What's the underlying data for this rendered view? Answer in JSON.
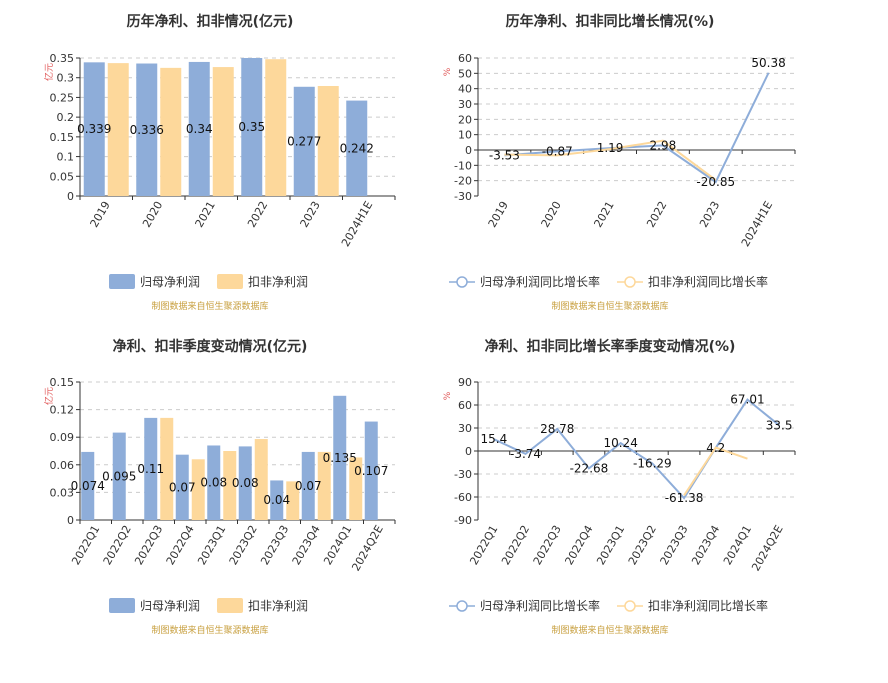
{
  "source_note": "制图数据来自恒生聚源数据库",
  "colors": {
    "series_a": "#8eadd9",
    "series_b": "#fdd89b",
    "unit_text": "#e05555",
    "source_text": "#c8a040",
    "axis": "#333333",
    "grid": "#cccccc"
  },
  "chart_data": [
    {
      "type": "bar",
      "title": "历年净利、扣非情况(亿元)",
      "ylabel": "亿元",
      "categories": [
        "2019",
        "2020",
        "2021",
        "2022",
        "2023",
        "2024H1E"
      ],
      "series": [
        {
          "name": "归母净利润",
          "values": [
            0.339,
            0.336,
            0.34,
            0.35,
            0.277,
            0.242
          ]
        },
        {
          "name": "扣非净利润",
          "values": [
            0.337,
            0.325,
            0.327,
            0.347,
            0.279,
            null
          ]
        }
      ],
      "data_labels": [
        "0.339",
        "0.336",
        "0.34",
        "0.35",
        "0.277",
        "0.242"
      ],
      "yticks": [
        "0",
        "0.05",
        "0.1",
        "0.15",
        "0.2",
        "0.25",
        "0.3",
        "0.35"
      ],
      "ylim": [
        0,
        0.35
      ],
      "grid": true,
      "legend": "bottom"
    },
    {
      "type": "line",
      "title": "历年净利、扣非同比增长情况(%)",
      "ylabel": "%",
      "categories": [
        "2019",
        "2020",
        "2021",
        "2022",
        "2023",
        "2024H1E"
      ],
      "series": [
        {
          "name": "归母净利润同比增长率",
          "values": [
            -3.53,
            -0.87,
            1.19,
            2.98,
            -20.85,
            50.38
          ]
        },
        {
          "name": "扣非净利润同比增长率",
          "values": [
            -3.0,
            -3.5,
            0.6,
            6.1,
            -19.6,
            null
          ]
        }
      ],
      "data_labels": [
        "-3.53",
        "-0.87",
        "1.19",
        "2.98",
        "-20.85",
        "50.38"
      ],
      "yticks": [
        "-30",
        "-20",
        "-10",
        "0",
        "10",
        "20",
        "30",
        "40",
        "50",
        "60"
      ],
      "ylim": [
        -30,
        60
      ],
      "grid": true,
      "legend": "bottom"
    },
    {
      "type": "bar",
      "title": "净利、扣非季度变动情况(亿元)",
      "ylabel": "亿元",
      "categories": [
        "2022Q1",
        "2022Q2",
        "2022Q3",
        "2022Q4",
        "2023Q1",
        "2023Q2",
        "2023Q3",
        "2023Q4",
        "2024Q1",
        "2024Q2E"
      ],
      "series": [
        {
          "name": "归母净利润",
          "values": [
            0.074,
            0.095,
            0.111,
            0.071,
            0.081,
            0.08,
            0.043,
            0.074,
            0.135,
            0.107
          ]
        },
        {
          "name": "扣非净利润",
          "values": [
            null,
            null,
            0.111,
            0.066,
            0.075,
            0.088,
            0.042,
            0.074,
            0.068,
            null
          ]
        }
      ],
      "data_labels": [
        "0.074",
        "0.095",
        "0.11",
        "0.07",
        "0.08",
        "0.08",
        "0.04",
        "0.07",
        "0.135",
        "0.107"
      ],
      "yticks": [
        "0",
        "0.03",
        "0.06",
        "0.09",
        "0.12",
        "0.15"
      ],
      "ylim": [
        0,
        0.15
      ],
      "grid": true,
      "legend": "bottom"
    },
    {
      "type": "line",
      "title": "净利、扣非同比增长率季度变动情况(%)",
      "ylabel": "%",
      "categories": [
        "2022Q1",
        "2022Q2",
        "2022Q3",
        "2022Q4",
        "2023Q1",
        "2023Q2",
        "2023Q3",
        "2023Q4",
        "2024Q1",
        "2024Q2E"
      ],
      "series": [
        {
          "name": "归母净利润同比增长率",
          "values": [
            15.4,
            -3.74,
            28.78,
            -22.68,
            10.24,
            -16.29,
            -61.38,
            4.2,
            67.01,
            33.5
          ]
        },
        {
          "name": "扣非净利润同比增长率",
          "values": [
            null,
            null,
            null,
            null,
            null,
            null,
            -58.0,
            4.5,
            -10.0,
            null
          ]
        }
      ],
      "data_labels": [
        "15.4",
        "-3.74",
        "28.78",
        "-22.68",
        "10.24",
        "-16.29",
        "-61.38",
        "4.2",
        "67.01",
        "33.5"
      ],
      "yticks": [
        "-90",
        "-60",
        "-30",
        "0",
        "30",
        "60",
        "90"
      ],
      "ylim": [
        -90,
        90
      ],
      "grid": true,
      "legend": "bottom"
    }
  ]
}
